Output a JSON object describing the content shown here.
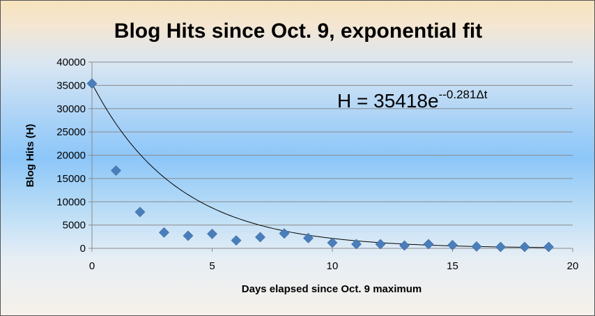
{
  "chart_data": {
    "type": "scatter",
    "title": "Blog Hits since Oct. 9, exponential fit",
    "xlabel": "Days elapsed since Oct. 9 maximum",
    "ylabel": "Blog Hits (H)",
    "xlim": [
      0,
      20
    ],
    "ylim": [
      0,
      40000
    ],
    "x_ticks": [
      0,
      5,
      10,
      15,
      20
    ],
    "y_ticks": [
      0,
      5000,
      10000,
      15000,
      20000,
      25000,
      30000,
      35000,
      40000
    ],
    "grid": "horizontal",
    "legend": "none",
    "series": [
      {
        "marker": "diamond",
        "color": "#4a7ebb",
        "x": [
          0,
          1,
          2,
          3,
          4,
          5,
          6,
          7,
          8,
          9,
          10,
          11,
          12,
          13,
          14,
          15,
          16,
          17,
          18,
          19
        ],
        "y": [
          35400,
          16700,
          7800,
          3400,
          2700,
          3100,
          1700,
          2400,
          3200,
          2200,
          1200,
          900,
          900,
          600,
          900,
          700,
          400,
          300,
          300,
          300
        ]
      }
    ],
    "fit": {
      "type": "exponential",
      "amplitude": 35418,
      "rate": 0.281,
      "color": "#000000",
      "equation_main": "H = 35418e",
      "equation_exponent": "--0.281Δt"
    }
  }
}
